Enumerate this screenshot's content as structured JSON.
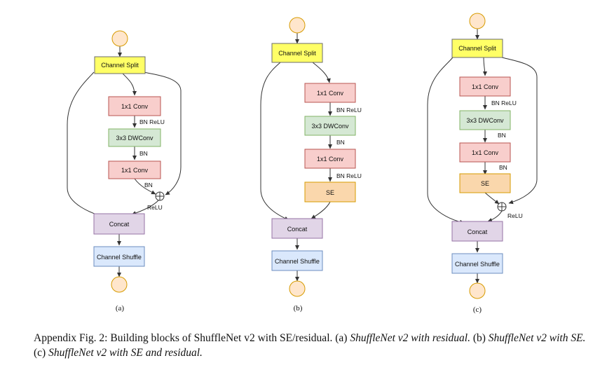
{
  "colors": {
    "yellow": "#ffff66",
    "pink": "#f8cecc",
    "green": "#d5e8d4",
    "orange": "#fad7ac",
    "purple": "#e1d5e7",
    "blue": "#dae8fc",
    "circle": "#ffe6cc",
    "border": "#6b6b6b"
  },
  "labels": {
    "channel_split": "Channel Split",
    "conv1x1": "1x1 Conv",
    "dwconv": "3x3 DWConv",
    "se": "SE",
    "concat": "Concat",
    "channel_shuffle": "Channel Shuffle",
    "bn_relu": "BN ReLU",
    "bn": "BN",
    "relu": "ReLU",
    "add_symbol": "+"
  },
  "subfigs": [
    "(a)",
    "(b)",
    "(c)"
  ],
  "caption": {
    "prefix": "Appendix Fig. 2: Building blocks of ShuffleNet v2 with SE/residual. (a) ",
    "a_title": "ShuffleNet v2 with residual.",
    "mid_b": " (b) ",
    "b_title": "ShuffleNet v2 with SE.",
    "mid_c": " (c) ",
    "c_title": "ShuffleNet v2 with SE and residual."
  }
}
